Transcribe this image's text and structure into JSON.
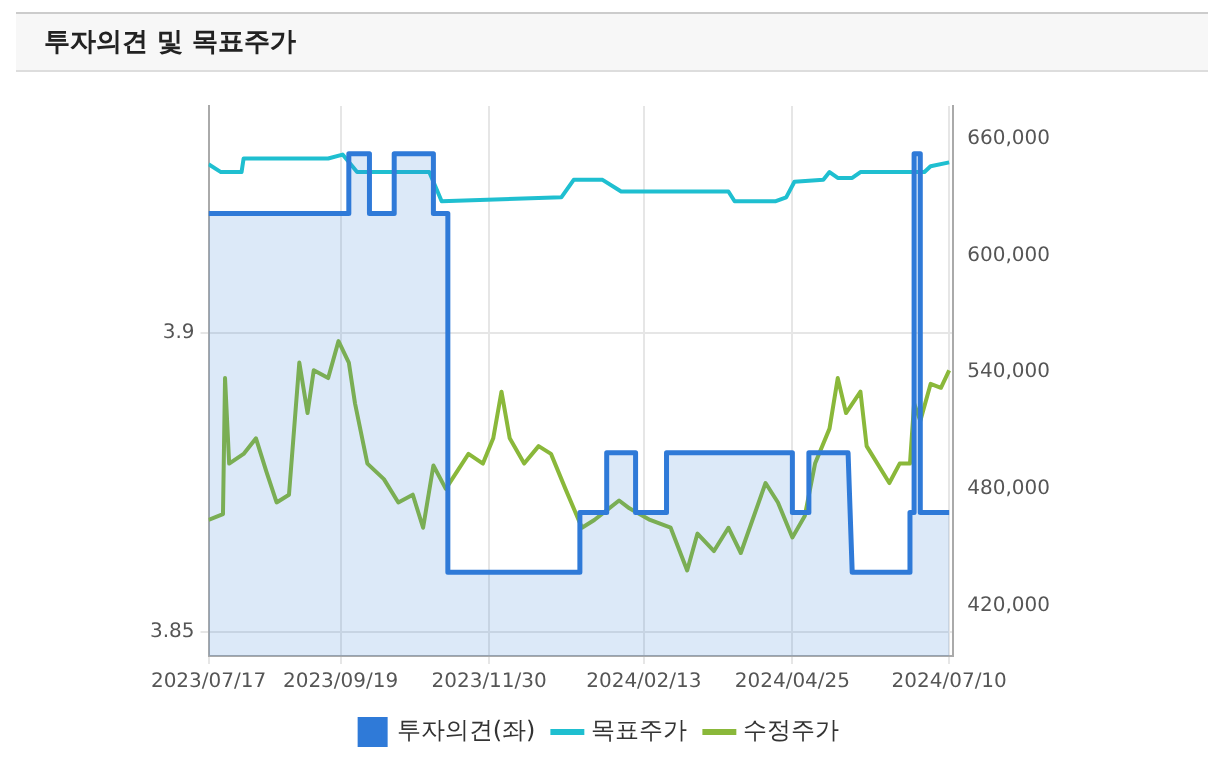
{
  "chart_data": {
    "type": "line",
    "title": "투자의견 및 목표주가",
    "xlim": [
      "2023-07-17",
      "2024-07-12"
    ],
    "xticks": [
      {
        "value": "2023-07-17",
        "label": "2023/07/17"
      },
      {
        "value": "2023-09-19",
        "label": "2023/09/19"
      },
      {
        "value": "2023-11-30",
        "label": "2023/11/30"
      },
      {
        "value": "2024-02-13",
        "label": "2024/02/13"
      },
      {
        "value": "2024-04-25",
        "label": "2024/04/25"
      },
      {
        "value": "2024-07-10",
        "label": "2024/07/10"
      }
    ],
    "ylim": [
      3.846,
      3.938
    ],
    "yticks": [
      3.85,
      3.9
    ],
    "y2lim": [
      394000,
      677000
    ],
    "y2ticks": [
      {
        "value": 420000,
        "label": "420,000"
      },
      {
        "value": 480000,
        "label": "480,000"
      },
      {
        "value": 540000,
        "label": "540,000"
      },
      {
        "value": 600000,
        "label": "600,000"
      },
      {
        "value": 660000,
        "label": "660,000"
      }
    ],
    "grid": true,
    "legend": "bottom",
    "marker": "none",
    "series": [
      {
        "name": "투자의견(좌)",
        "type": "area",
        "color": "#2f7ad8",
        "x": [
          "2023-07-17",
          "2023-09-23",
          "2023-09-23",
          "2023-10-03",
          "2023-10-03",
          "2023-10-15",
          "2023-10-15",
          "2023-11-03",
          "2023-11-03",
          "2023-11-10",
          "2023-11-10",
          "2024-01-13",
          "2024-01-13",
          "2024-01-26",
          "2024-01-26",
          "2024-02-09",
          "2024-02-09",
          "2024-02-24",
          "2024-02-24",
          "2024-04-25",
          "2024-04-25",
          "2024-05-03",
          "2024-05-03",
          "2024-05-22",
          "2024-05-24",
          "2024-06-21",
          "2024-06-21",
          "2024-06-23",
          "2024-06-23",
          "2024-06-26",
          "2024-06-26",
          "2024-07-10"
        ],
        "values": [
          3.92,
          3.92,
          3.93,
          3.93,
          3.92,
          3.92,
          3.93,
          3.93,
          3.92,
          3.92,
          3.86,
          3.86,
          3.87,
          3.87,
          3.88,
          3.88,
          3.87,
          3.87,
          3.88,
          3.88,
          3.87,
          3.87,
          3.88,
          3.88,
          3.86,
          3.86,
          3.87,
          3.87,
          3.93,
          3.93,
          3.87,
          3.87
        ]
      },
      {
        "name": "목표주가",
        "type": "line",
        "axis": "y2",
        "color": "#1fbfd0",
        "x": [
          "2023-07-17",
          "2023-07-23",
          "2023-08-02",
          "2023-08-03",
          "2023-09-13",
          "2023-09-20",
          "2023-09-27",
          "2023-11-01",
          "2023-11-07",
          "2024-01-04",
          "2024-01-10",
          "2024-01-24",
          "2024-02-02",
          "2024-03-25",
          "2024-03-28",
          "2024-04-17",
          "2024-04-22",
          "2024-04-26",
          "2024-05-10",
          "2024-05-13",
          "2024-05-17",
          "2024-05-24",
          "2024-05-28",
          "2024-06-28",
          "2024-07-01",
          "2024-07-10"
        ],
        "values": [
          647000,
          643000,
          643000,
          650000,
          650000,
          652000,
          643000,
          643000,
          628000,
          630000,
          639000,
          639000,
          633000,
          633000,
          628000,
          628000,
          630000,
          638000,
          639000,
          643000,
          640000,
          640000,
          643000,
          643000,
          646000,
          648000
        ]
      },
      {
        "name": "수정주가",
        "type": "line",
        "axis": "y2",
        "color": "#8ab83a",
        "x": [
          "2023-07-17",
          "2023-07-24",
          "2023-07-25",
          "2023-07-27",
          "2023-08-03",
          "2023-08-09",
          "2023-08-14",
          "2023-08-19",
          "2023-08-25",
          "2023-08-30",
          "2023-09-03",
          "2023-09-06",
          "2023-09-13",
          "2023-09-18",
          "2023-09-23",
          "2023-09-26",
          "2023-10-02",
          "2023-10-10",
          "2023-10-17",
          "2023-10-24",
          "2023-10-29",
          "2023-11-03",
          "2023-11-09",
          "2023-11-20",
          "2023-11-27",
          "2023-12-02",
          "2023-12-06",
          "2023-12-10",
          "2023-12-17",
          "2023-12-24",
          "2023-12-30",
          "2024-01-06",
          "2024-01-14",
          "2024-01-20",
          "2024-02-01",
          "2024-02-06",
          "2024-02-16",
          "2024-02-26",
          "2024-03-05",
          "2024-03-10",
          "2024-03-18",
          "2024-03-25",
          "2024-03-31",
          "2024-04-12",
          "2024-04-18",
          "2024-04-25",
          "2024-05-01",
          "2024-05-06",
          "2024-05-13",
          "2024-05-17",
          "2024-05-21",
          "2024-05-28",
          "2024-05-31",
          "2024-06-11",
          "2024-06-16",
          "2024-06-21",
          "2024-06-23",
          "2024-06-26",
          "2024-07-01",
          "2024-07-06",
          "2024-07-10"
        ],
        "values": [
          464000,
          467000,
          537000,
          493000,
          498000,
          506000,
          489000,
          473000,
          477000,
          545000,
          519000,
          541000,
          537000,
          556000,
          545000,
          524000,
          493000,
          485000,
          473000,
          477000,
          460000,
          492000,
          480000,
          498000,
          493000,
          506000,
          530000,
          506000,
          493000,
          502000,
          498000,
          480000,
          460000,
          464000,
          474000,
          470000,
          464000,
          460000,
          438000,
          457000,
          448000,
          460000,
          447000,
          483000,
          473000,
          455000,
          466000,
          493000,
          511000,
          537000,
          519000,
          530000,
          502000,
          483000,
          493000,
          493000,
          524000,
          515000,
          534000,
          532000,
          541000
        ]
      }
    ]
  }
}
